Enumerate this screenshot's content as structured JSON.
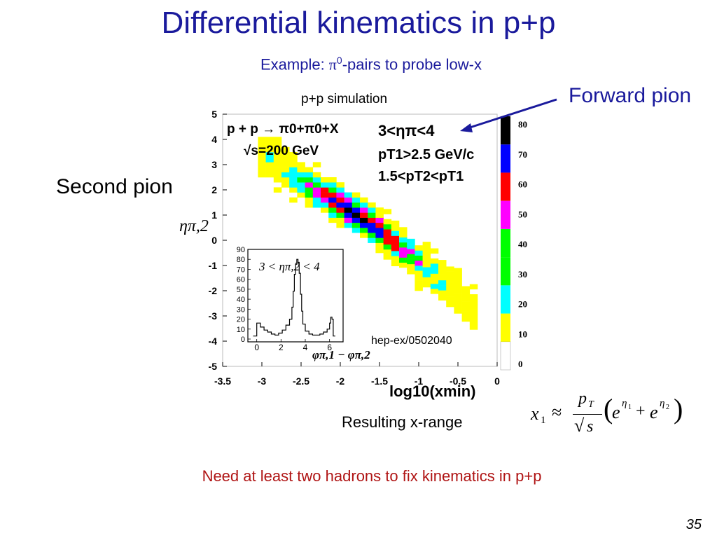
{
  "slide": {
    "title": "Differential kinematics in p+p",
    "subtitle_prefix": "Example: ",
    "subtitle_pi": "π",
    "subtitle_sup": "0",
    "subtitle_suffix": "-pairs to probe low-x",
    "sim_label": "p+p simulation",
    "forward_label": "Forward pion",
    "second_label": "Second pion",
    "hep_label": "hep-ex/0502040",
    "xrange_label": "Resulting x-range",
    "conclusion": "Need at least two hadrons to fix kinematics in p+p",
    "page_number": "35"
  },
  "colors": {
    "title": "#1a1a9c",
    "conclusion": "#b01515",
    "arrow": "#1a1a9c"
  },
  "formula": {
    "lhs": "x",
    "lhs_sub": "1",
    "approx": "≈",
    "num": "p",
    "num_sub": "T",
    "den": "s",
    "term": "e",
    "exp1": "η",
    "exp1_sub": "1",
    "plus": "+",
    "exp2": "η",
    "exp2_sub": "2"
  },
  "chart_data": [
    {
      "type": "heatmap",
      "title": "",
      "xlabel": "log10(xmin)",
      "ylabel": "ηπ,2",
      "xlim": [
        -3.5,
        0
      ],
      "ylim": [
        -5,
        5
      ],
      "xticks": [
        -3.5,
        -3,
        -2.5,
        -2,
        -1.5,
        -1,
        -0.5,
        0
      ],
      "xtick_labels": [
        "-3.5",
        "-3",
        "-2.5",
        "-2",
        "-1.5",
        "-1",
        "-0.5",
        "0"
      ],
      "yticks": [
        -5,
        -4,
        -3,
        -2,
        -1,
        0,
        1,
        2,
        3,
        4,
        5
      ],
      "ytick_labels": [
        "-5",
        "-4",
        "-3",
        "-2",
        "-1",
        "0",
        "1",
        "2",
        "3",
        "4",
        "5"
      ],
      "annotations": [
        "p + p → π0+π0+X",
        "√s=200 GeV",
        "3<ηπ<4",
        "pT1>2.5 GeV/c",
        "1.5<pT2<pT1"
      ],
      "colorbar": {
        "labels": [
          "0",
          "10",
          "20",
          "30",
          "40",
          "50",
          "60",
          "70",
          "80"
        ],
        "colors": [
          "#ffffff",
          "#ffff00",
          "#00ffff",
          "#00ff00",
          "#00ff00",
          "#ff00ff",
          "#ff0000",
          "#0000ff",
          "#000000"
        ]
      },
      "band": {
        "description_points": [
          {
            "x": -3.0,
            "y": 3.3
          },
          {
            "x": -2.5,
            "y": 2.3
          },
          {
            "x": -2.0,
            "y": 1.3
          },
          {
            "x": -1.5,
            "y": 0.3
          },
          {
            "x": -1.0,
            "y": -1.0
          },
          {
            "x": -0.5,
            "y": -2.3
          },
          {
            "x": -0.25,
            "y": -3.1
          }
        ],
        "peak_x": -1.75,
        "peak_y": 0.9
      }
    },
    {
      "type": "line",
      "title": "3 < ηπ,2 < 4",
      "xlabel": "φπ,1 − φπ,2",
      "ylabel": "",
      "xlim": [
        -0.5,
        7
      ],
      "ylim": [
        0,
        90
      ],
      "xticks": [
        0,
        2,
        4,
        6
      ],
      "xtick_labels": [
        "0",
        "2",
        "4",
        "6"
      ],
      "yticks": [
        0,
        10,
        20,
        30,
        40,
        50,
        60,
        70,
        80,
        90
      ],
      "ytick_labels": [
        "0",
        "10",
        "20",
        "30",
        "40",
        "50",
        "60",
        "70",
        "80",
        "90"
      ],
      "x": [
        -0.3,
        0.0,
        0.3,
        0.6,
        0.9,
        1.2,
        1.5,
        1.8,
        2.1,
        2.4,
        2.7,
        2.9,
        3.0,
        3.1,
        3.2,
        3.3,
        3.4,
        3.5,
        3.6,
        3.7,
        3.8,
        4.0,
        4.3,
        4.6,
        4.9,
        5.2,
        5.5,
        5.8,
        6.0,
        6.1,
        6.2,
        6.3
      ],
      "values": [
        3,
        16,
        12,
        9,
        7,
        5,
        4,
        6,
        9,
        14,
        20,
        32,
        48,
        65,
        75,
        80,
        77,
        66,
        45,
        28,
        15,
        8,
        5,
        4,
        4,
        5,
        7,
        10,
        16,
        22,
        20,
        3
      ]
    }
  ]
}
